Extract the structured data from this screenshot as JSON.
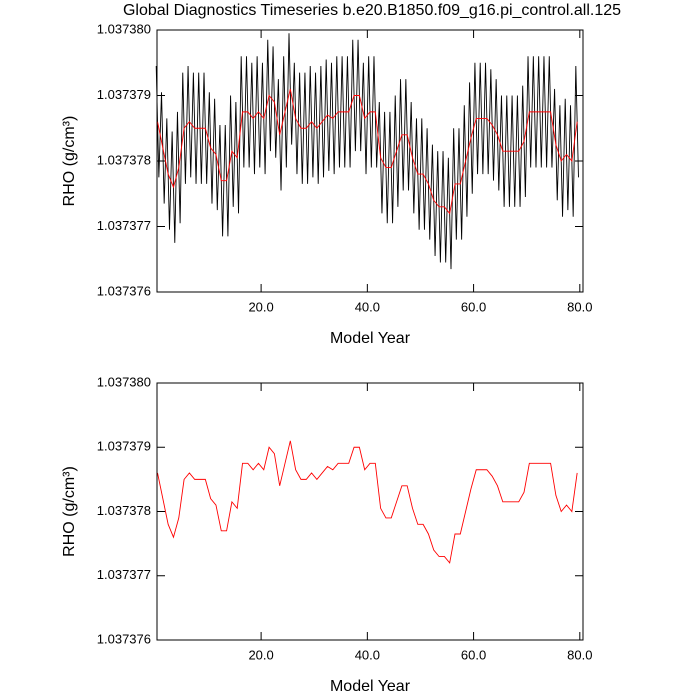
{
  "chart_data": [
    {
      "type": "line",
      "title": "Global Diagnostics Timeseries b.e20.B1850.f09_g16.pi_control.all.125",
      "xlabel": "Model Year",
      "ylabel": "RHO (g/cm³)",
      "xlim": [
        0.4,
        80.6
      ],
      "ylim": [
        1.037376,
        1.03738
      ],
      "xticks": [
        {
          "value": 20,
          "label": "20.0"
        },
        {
          "value": 40,
          "label": "40.0"
        },
        {
          "value": 60,
          "label": "60.0"
        },
        {
          "value": 80,
          "label": "80.0"
        }
      ],
      "yticks": [
        {
          "value": 1.037376,
          "label": "1.037376"
        },
        {
          "value": 1.037377,
          "label": "1.037377"
        },
        {
          "value": 1.037378,
          "label": "1.037378"
        },
        {
          "value": 1.037379,
          "label": "1.037379"
        },
        {
          "value": 1.03738,
          "label": "1.037380"
        }
      ],
      "series": [
        {
          "color": "#000000",
          "x": [
            0.25,
            0.75,
            1.25,
            1.75,
            2.25,
            2.75,
            3.25,
            3.75,
            4.25,
            4.75,
            5.25,
            5.75,
            6.25,
            6.75,
            7.25,
            7.75,
            8.25,
            8.75,
            9.25,
            9.75,
            10.25,
            10.75,
            11.25,
            11.75,
            12.25,
            12.75,
            13.25,
            13.75,
            14.25,
            14.75,
            15.25,
            15.75,
            16.25,
            16.75,
            17.25,
            17.75,
            18.25,
            18.75,
            19.25,
            19.75,
            20.25,
            20.75,
            21.25,
            21.75,
            22.25,
            22.75,
            23.25,
            23.75,
            24.25,
            24.75,
            25.25,
            25.75,
            26.25,
            26.75,
            27.25,
            27.75,
            28.25,
            28.75,
            29.25,
            29.75,
            30.25,
            30.75,
            31.25,
            31.75,
            32.25,
            32.75,
            33.25,
            33.75,
            34.25,
            34.75,
            35.25,
            35.75,
            36.25,
            36.75,
            37.25,
            37.75,
            38.25,
            38.75,
            39.25,
            39.75,
            40.25,
            40.75,
            41.25,
            41.75,
            42.25,
            42.75,
            43.25,
            43.75,
            44.25,
            44.75,
            45.25,
            45.75,
            46.25,
            46.75,
            47.25,
            47.75,
            48.25,
            48.75,
            49.25,
            49.75,
            50.25,
            50.75,
            51.25,
            51.75,
            52.25,
            52.75,
            53.25,
            53.75,
            54.25,
            54.75,
            55.25,
            55.75,
            56.25,
            56.75,
            57.25,
            57.75,
            58.25,
            58.75,
            59.25,
            59.75,
            60.25,
            60.75,
            61.25,
            61.75,
            62.25,
            62.75,
            63.25,
            63.75,
            64.25,
            64.75,
            65.25,
            65.75,
            66.25,
            66.75,
            67.25,
            67.75,
            68.25,
            68.75,
            69.25,
            69.75,
            70.25,
            70.75,
            71.25,
            71.75,
            72.25,
            72.75,
            73.25,
            73.75,
            74.25,
            74.75,
            75.25,
            75.75,
            76.25,
            76.75,
            77.25,
            77.75,
            78.25,
            78.75,
            79.25,
            79.75
          ],
          "values": [
            1.03737945,
            1.03737775,
            1.03737905,
            1.03737735,
            1.03737865,
            1.03737695,
            1.03737845,
            1.03737675,
            1.03737875,
            1.03737705,
            1.03737935,
            1.03737765,
            1.03737945,
            1.03737775,
            1.03737935,
            1.03737765,
            1.03737935,
            1.03737765,
            1.03737935,
            1.03737765,
            1.03737905,
            1.03737735,
            1.03737895,
            1.03737725,
            1.03737855,
            1.03737685,
            1.03737855,
            1.03737685,
            1.037379,
            1.0373773,
            1.0373789,
            1.0373772,
            1.0373796,
            1.0373779,
            1.0373796,
            1.0373779,
            1.0373795,
            1.0373778,
            1.0373796,
            1.0373779,
            1.0373795,
            1.0373778,
            1.03737985,
            1.03737815,
            1.03737975,
            1.03737805,
            1.03737925,
            1.03737755,
            1.0373796,
            1.0373779,
            1.03737995,
            1.03737825,
            1.0373795,
            1.0373778,
            1.03737935,
            1.03737765,
            1.03737935,
            1.03737765,
            1.03737945,
            1.03737775,
            1.03737935,
            1.03737765,
            1.03737945,
            1.03737775,
            1.03737955,
            1.03737785,
            1.0373795,
            1.0373778,
            1.0373796,
            1.0373779,
            1.0373796,
            1.0373779,
            1.0373796,
            1.0373779,
            1.03737985,
            1.03737815,
            1.03737985,
            1.03737815,
            1.0373795,
            1.0373778,
            1.0373796,
            1.0373779,
            1.0373796,
            1.0373779,
            1.0373789,
            1.0373772,
            1.03737875,
            1.03737705,
            1.03737875,
            1.03737705,
            1.037379,
            1.0373773,
            1.03737925,
            1.03737755,
            1.03737925,
            1.03737755,
            1.0373789,
            1.0373772,
            1.03737865,
            1.03737695,
            1.03737865,
            1.03737695,
            1.0373785,
            1.0373768,
            1.03737825,
            1.03737655,
            1.03737815,
            1.03737645,
            1.03737815,
            1.03737645,
            1.03737805,
            1.03737635,
            1.0373785,
            1.0373768,
            1.0373785,
            1.0373768,
            1.03737885,
            1.03737715,
            1.0373792,
            1.0373775,
            1.0373795,
            1.0373778,
            1.0373795,
            1.0373778,
            1.0373795,
            1.0373778,
            1.0373794,
            1.0373777,
            1.03737925,
            1.03737755,
            1.037379,
            1.0373773,
            1.037379,
            1.0373773,
            1.037379,
            1.0373773,
            1.037379,
            1.0373773,
            1.03737915,
            1.03737745,
            1.0373796,
            1.0373779,
            1.0373796,
            1.0373779,
            1.0373796,
            1.0373779,
            1.0373796,
            1.0373779,
            1.0373796,
            1.0373779,
            1.0373791,
            1.0373774,
            1.03737885,
            1.03737715,
            1.03737895,
            1.03737725,
            1.03737885,
            1.03737715,
            1.03737945,
            1.03737775
          ]
        },
        {
          "color": "#ff0000",
          "x": [
            0.5,
            1.5,
            2.5,
            3.5,
            4.5,
            5.5,
            6.5,
            7.5,
            8.5,
            9.5,
            10.5,
            11.5,
            12.5,
            13.5,
            14.5,
            15.5,
            16.5,
            17.5,
            18.5,
            19.5,
            20.5,
            21.5,
            22.5,
            23.5,
            24.5,
            25.5,
            26.5,
            27.5,
            28.5,
            29.5,
            30.5,
            31.5,
            32.5,
            33.5,
            34.5,
            35.5,
            36.5,
            37.5,
            38.5,
            39.5,
            40.5,
            41.5,
            42.5,
            43.5,
            44.5,
            45.5,
            46.5,
            47.5,
            48.5,
            49.5,
            50.5,
            51.5,
            52.5,
            53.5,
            54.5,
            55.5,
            56.5,
            57.5,
            58.5,
            59.5,
            60.5,
            61.5,
            62.5,
            63.5,
            64.5,
            65.5,
            66.5,
            67.5,
            68.5,
            69.5,
            70.5,
            71.5,
            72.5,
            73.5,
            74.5,
            75.5,
            76.5,
            77.5,
            78.5,
            79.5
          ],
          "values": [
            1.0373786,
            1.0373782,
            1.0373778,
            1.0373776,
            1.0373779,
            1.0373785,
            1.0373786,
            1.0373785,
            1.0373785,
            1.0373785,
            1.0373782,
            1.0373781,
            1.0373777,
            1.0373777,
            1.03737815,
            1.03737805,
            1.03737875,
            1.03737875,
            1.03737865,
            1.03737875,
            1.03737865,
            1.037379,
            1.0373789,
            1.0373784,
            1.03737875,
            1.0373791,
            1.03737865,
            1.0373785,
            1.0373785,
            1.0373786,
            1.0373785,
            1.0373786,
            1.0373787,
            1.03737865,
            1.03737875,
            1.03737875,
            1.03737875,
            1.037379,
            1.037379,
            1.03737865,
            1.03737875,
            1.03737875,
            1.03737805,
            1.0373779,
            1.0373779,
            1.03737815,
            1.0373784,
            1.0373784,
            1.03737805,
            1.0373778,
            1.0373778,
            1.03737765,
            1.0373774,
            1.0373773,
            1.0373773,
            1.0373772,
            1.03737765,
            1.03737765,
            1.037378,
            1.03737835,
            1.03737865,
            1.03737865,
            1.03737865,
            1.03737855,
            1.0373784,
            1.03737815,
            1.03737815,
            1.03737815,
            1.03737815,
            1.0373783,
            1.03737875,
            1.03737875,
            1.03737875,
            1.03737875,
            1.03737875,
            1.03737825,
            1.037378,
            1.0373781,
            1.037378,
            1.0373786
          ]
        }
      ]
    },
    {
      "type": "line",
      "xlabel": "Model Year",
      "ylabel": "RHO (g/cm³)",
      "xlim": [
        0.4,
        80.6
      ],
      "ylim": [
        1.037376,
        1.03738
      ],
      "xticks": [
        {
          "value": 20,
          "label": "20.0"
        },
        {
          "value": 40,
          "label": "40.0"
        },
        {
          "value": 60,
          "label": "60.0"
        },
        {
          "value": 80,
          "label": "80.0"
        }
      ],
      "yticks": [
        {
          "value": 1.037376,
          "label": "1.037376"
        },
        {
          "value": 1.037377,
          "label": "1.037377"
        },
        {
          "value": 1.037378,
          "label": "1.037378"
        },
        {
          "value": 1.037379,
          "label": "1.037379"
        },
        {
          "value": 1.03738,
          "label": "1.037380"
        }
      ],
      "series": [
        {
          "color": "#ff0000",
          "x": [
            0.5,
            1.5,
            2.5,
            3.5,
            4.5,
            5.5,
            6.5,
            7.5,
            8.5,
            9.5,
            10.5,
            11.5,
            12.5,
            13.5,
            14.5,
            15.5,
            16.5,
            17.5,
            18.5,
            19.5,
            20.5,
            21.5,
            22.5,
            23.5,
            24.5,
            25.5,
            26.5,
            27.5,
            28.5,
            29.5,
            30.5,
            31.5,
            32.5,
            33.5,
            34.5,
            35.5,
            36.5,
            37.5,
            38.5,
            39.5,
            40.5,
            41.5,
            42.5,
            43.5,
            44.5,
            45.5,
            46.5,
            47.5,
            48.5,
            49.5,
            50.5,
            51.5,
            52.5,
            53.5,
            54.5,
            55.5,
            56.5,
            57.5,
            58.5,
            59.5,
            60.5,
            61.5,
            62.5,
            63.5,
            64.5,
            65.5,
            66.5,
            67.5,
            68.5,
            69.5,
            70.5,
            71.5,
            72.5,
            73.5,
            74.5,
            75.5,
            76.5,
            77.5,
            78.5,
            79.5
          ],
          "values": [
            1.0373786,
            1.0373782,
            1.0373778,
            1.0373776,
            1.0373779,
            1.0373785,
            1.0373786,
            1.0373785,
            1.0373785,
            1.0373785,
            1.0373782,
            1.0373781,
            1.0373777,
            1.0373777,
            1.03737815,
            1.03737805,
            1.03737875,
            1.03737875,
            1.03737865,
            1.03737875,
            1.03737865,
            1.037379,
            1.0373789,
            1.0373784,
            1.03737875,
            1.0373791,
            1.03737865,
            1.0373785,
            1.0373785,
            1.0373786,
            1.0373785,
            1.0373786,
            1.0373787,
            1.03737865,
            1.03737875,
            1.03737875,
            1.03737875,
            1.037379,
            1.037379,
            1.03737865,
            1.03737875,
            1.03737875,
            1.03737805,
            1.0373779,
            1.0373779,
            1.03737815,
            1.0373784,
            1.0373784,
            1.03737805,
            1.0373778,
            1.0373778,
            1.03737765,
            1.0373774,
            1.0373773,
            1.0373773,
            1.0373772,
            1.03737765,
            1.03737765,
            1.037378,
            1.03737835,
            1.03737865,
            1.03737865,
            1.03737865,
            1.03737855,
            1.0373784,
            1.03737815,
            1.03737815,
            1.03737815,
            1.03737815,
            1.0373783,
            1.03737875,
            1.03737875,
            1.03737875,
            1.03737875,
            1.03737875,
            1.03737825,
            1.037378,
            1.0373781,
            1.037378,
            1.0373786
          ]
        }
      ]
    }
  ]
}
